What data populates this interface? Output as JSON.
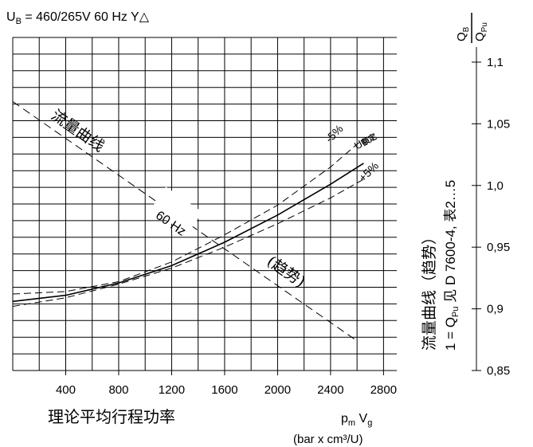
{
  "header": {
    "supply_prefix": "U",
    "supply_sub": "B",
    "supply_rest": " = 460/265V 60 Hz ",
    "connection_symbol": "Y△"
  },
  "right_axis_title": {
    "num": "Q",
    "num_sub": "B",
    "den": "Q",
    "den_sub": "Pu"
  },
  "right_side_note": {
    "line1": "流量曲线（趋势）",
    "line2_prefix": "1 = Q",
    "line2_sub": "Pu",
    "line2_rest": " 见 D 7600-4, 表2…5"
  },
  "x_axis": {
    "title": "理论平均行程功率",
    "symbol_main": "p",
    "symbol_sub1": "m",
    "symbol_mid": " V",
    "symbol_sub2": "g",
    "unit": "(bar x cm³/U)"
  },
  "chart_data": {
    "type": "line",
    "x_ticks": [
      "400",
      "800",
      "1200",
      "1600",
      "2000",
      "2400",
      "2800"
    ],
    "y_ticks": [
      "0,85",
      "0,9",
      "0,95",
      "1,0",
      "1,05",
      "1,1"
    ],
    "xlim": [
      0,
      2900
    ],
    "ylim": [
      0.85,
      1.12
    ],
    "grid": true,
    "series": [
      {
        "name": "U 额定",
        "style": "solid",
        "x": [
          0,
          400,
          800,
          1200,
          1600,
          2000,
          2400,
          2650
        ],
        "y": [
          0.906,
          0.911,
          0.921,
          0.935,
          0.954,
          0.976,
          1.001,
          1.018
        ]
      },
      {
        "name": "-5%",
        "style": "dashed",
        "x": [
          0,
          400,
          800,
          1200,
          1600,
          2000,
          2400,
          2650
        ],
        "y": [
          0.912,
          0.914,
          0.922,
          0.938,
          0.96,
          0.984,
          1.015,
          1.038
        ]
      },
      {
        "name": "+5%",
        "style": "dashed",
        "x": [
          0,
          400,
          800,
          1200,
          1600,
          2000,
          2400,
          2650
        ],
        "y": [
          0.902,
          0.909,
          0.92,
          0.933,
          0.95,
          0.969,
          0.99,
          1.005
        ]
      }
    ],
    "trend_line": {
      "x": [
        0,
        2600
      ],
      "y": [
        1.068,
        0.874
      ]
    },
    "annotations": {
      "trend_label_a": "流量曲线",
      "trend_label_b": "60 Hz",
      "trend_label_c": "(趋势)",
      "rated_prefix": "U",
      "rated_suffix": "额定",
      "minus5": "-5%",
      "plus5": "+5%"
    }
  }
}
